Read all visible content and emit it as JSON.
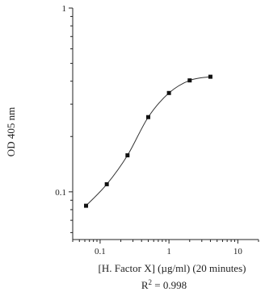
{
  "chart_data": {
    "type": "scatter",
    "title": "",
    "xlabel": "[H. Factor X] (µg/ml) (20 minutes)",
    "ylabel": "OD 405 nm",
    "annotation": {
      "prefix": "R",
      "sup": "2",
      "rest": " = 0.998"
    },
    "xscale": "log",
    "yscale": "log",
    "xlim": [
      0.04,
      20
    ],
    "ylim": [
      0.055,
      1
    ],
    "xticks_major": [
      0.1,
      1,
      10
    ],
    "xtick_labels": [
      "0.1",
      "1",
      "10"
    ],
    "yticks_major": [
      0.1,
      1
    ],
    "ytick_labels": [
      "0.1",
      "1"
    ],
    "grid": false,
    "series": [
      {
        "x": [
          0.0625,
          0.125,
          0.25,
          0.5,
          1,
          2,
          4
        ],
        "y": [
          0.084,
          0.11,
          0.158,
          0.255,
          0.345,
          0.404,
          0.423
        ],
        "marker": "square",
        "line": "smooth"
      }
    ]
  }
}
